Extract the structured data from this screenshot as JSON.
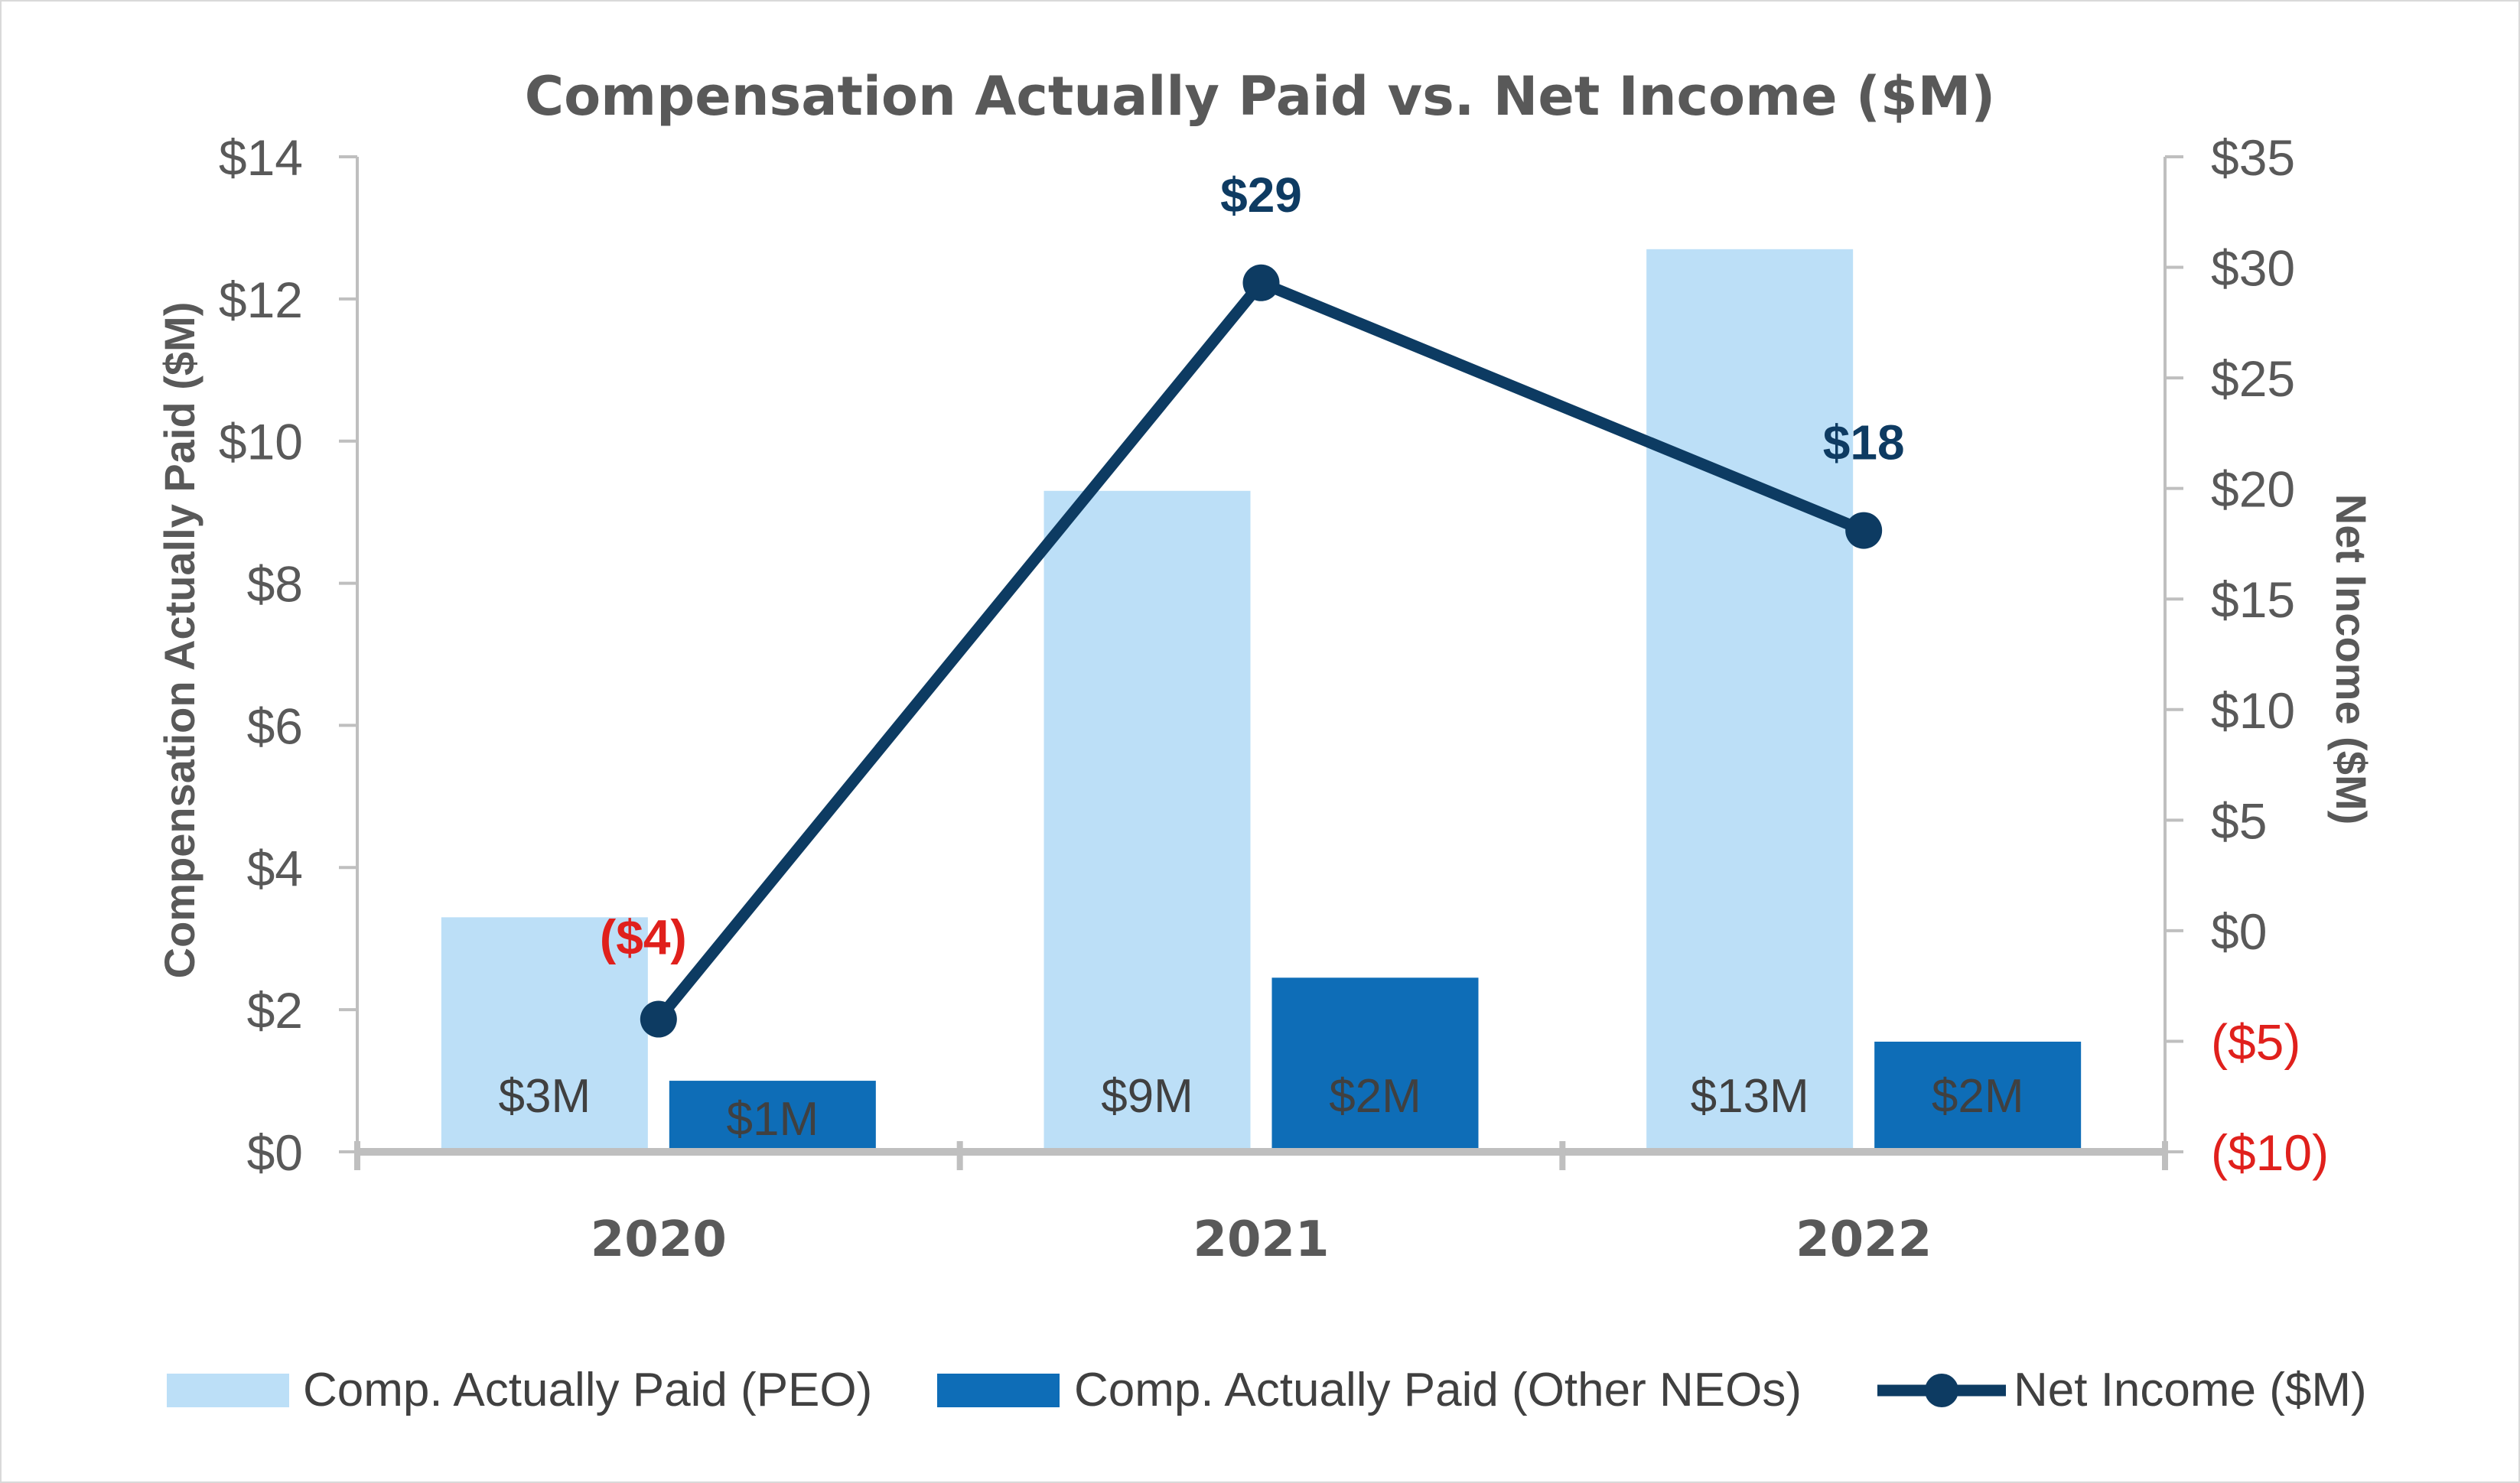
{
  "colors": {
    "peo": "#bcdff7",
    "other": "#0e6db7",
    "net_income": "#0d3b62",
    "axis": "#bfbfbf",
    "text": "#595959",
    "negative": "#e0201c"
  },
  "chart_data": {
    "type": "bar",
    "title": "Compensation Actually Paid vs. Net Income ($M)",
    "categories": [
      "2020",
      "2021",
      "2022"
    ],
    "ylabel": "Compensation Actually Paid ($M)",
    "ylim": [
      0,
      14
    ],
    "yticks": [
      0,
      2,
      4,
      6,
      8,
      10,
      12,
      14
    ],
    "ytick_labels": [
      "$0",
      "$2",
      "$4",
      "$6",
      "$8",
      "$10",
      "$12",
      "$14"
    ],
    "y2label": "Net Income ($M)",
    "y2lim": [
      -10,
      35
    ],
    "y2ticks": [
      -10,
      -5,
      0,
      5,
      10,
      15,
      20,
      25,
      30,
      35
    ],
    "y2tick_labels": [
      "($10)",
      "($5)",
      "$0",
      "$5",
      "$10",
      "$15",
      "$20",
      "$25",
      "$30",
      "$35"
    ],
    "series": [
      {
        "name": "Comp. Actually Paid (PEO)",
        "type": "bar",
        "axis": "left",
        "values": [
          3.3,
          9.3,
          12.7
        ],
        "labels": [
          "$3M",
          "$9M",
          "$13M"
        ]
      },
      {
        "name": "Comp. Actually Paid (Other NEOs)",
        "type": "bar",
        "axis": "left",
        "values": [
          1.0,
          2.45,
          1.55
        ],
        "labels": [
          "$1M",
          "$2M",
          "$2M"
        ]
      },
      {
        "name": "Net Income ($M)",
        "type": "line",
        "axis": "right",
        "values": [
          -4,
          29.3,
          18.1
        ],
        "labels": [
          "($4)",
          "$29",
          "$18"
        ]
      }
    ],
    "legend_position": "bottom"
  }
}
